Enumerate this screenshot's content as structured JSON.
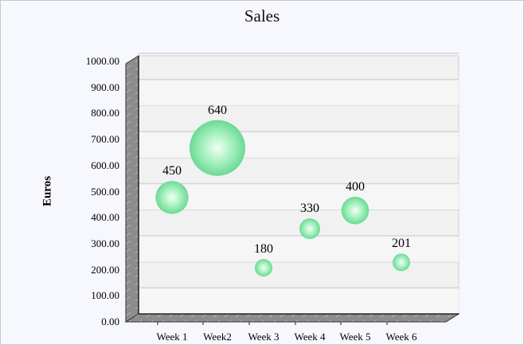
{
  "chart_data": {
    "type": "bubble",
    "title": "Sales",
    "xlabel": "",
    "ylabel": "Euros",
    "ylim": [
      0,
      1000
    ],
    "yticks": [
      "0.00",
      "100.00",
      "200.00",
      "300.00",
      "400.00",
      "500.00",
      "600.00",
      "700.00",
      "800.00",
      "900.00",
      "1000.00"
    ],
    "categories": [
      "Week 1",
      "Week2",
      "Week 3",
      "Week 4",
      "Week 5",
      "Week 6"
    ],
    "values": [
      450,
      640,
      180,
      330,
      400,
      201
    ],
    "value_labels": [
      "450",
      "640",
      "180",
      "330",
      "400",
      "201"
    ],
    "bubble_color": "#7ee6a0",
    "grid": true,
    "legend": "none"
  }
}
